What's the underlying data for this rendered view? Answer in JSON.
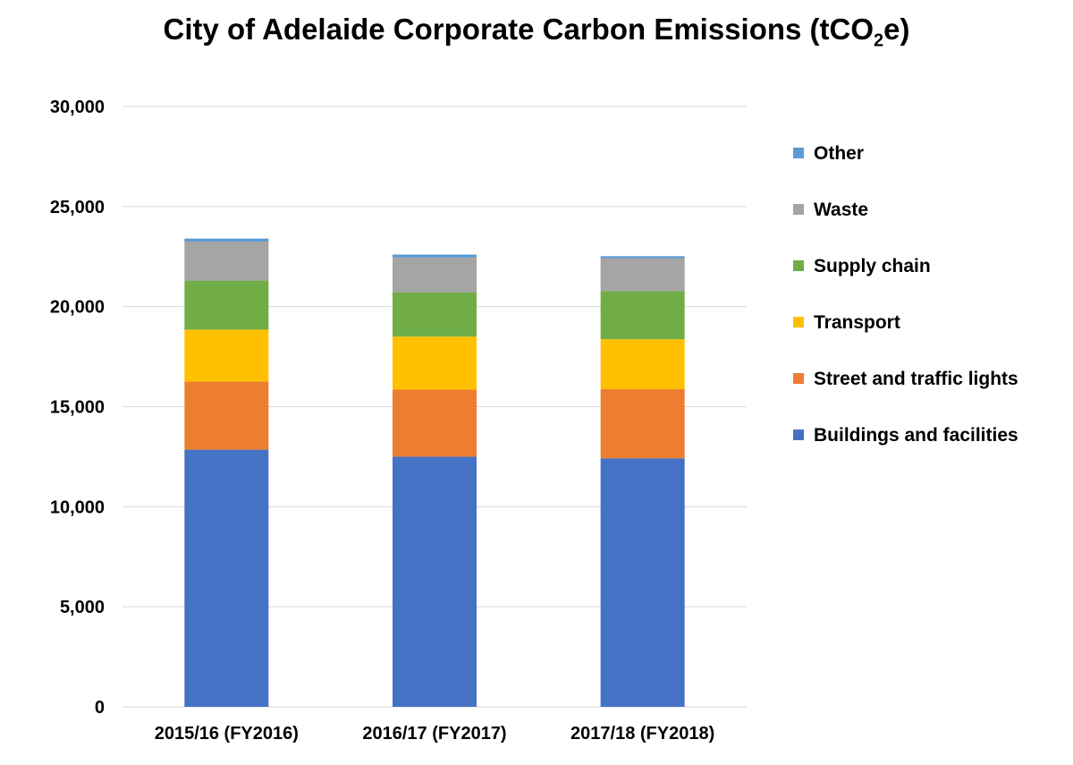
{
  "chart_data": {
    "type": "bar",
    "stacked": true,
    "title": "City of Adelaide Corporate Carbon Emissions (tCO2e)",
    "title_parts": {
      "prefix": "City of Adelaide Corporate Carbon Emissions (tCO",
      "subscript": "2",
      "suffix": "e)"
    },
    "xlabel": "",
    "ylabel": "",
    "ylim": [
      0,
      30000
    ],
    "y_ticks": [
      0,
      5000,
      10000,
      15000,
      20000,
      25000,
      30000
    ],
    "y_tick_labels": [
      "0",
      "5,000",
      "10,000",
      "15,000",
      "20,000",
      "25,000",
      "30,000"
    ],
    "grid": true,
    "legend_position": "right",
    "categories": [
      "2015/16 (FY2016)",
      "2016/17 (FY2017)",
      "2017/18 (FY2018)"
    ],
    "series": [
      {
        "name": "Buildings and facilities",
        "color": "#4472C4",
        "values": [
          12850,
          12500,
          12420
        ]
      },
      {
        "name": "Street and traffic lights",
        "color": "#ED7D31",
        "values": [
          3400,
          3350,
          3450
        ]
      },
      {
        "name": "Transport",
        "color": "#FFC000",
        "values": [
          2600,
          2650,
          2500
        ]
      },
      {
        "name": "Supply chain",
        "color": "#70AD47",
        "values": [
          2450,
          2200,
          2400
        ]
      },
      {
        "name": "Waste",
        "color": "#A5A5A5",
        "values": [
          1950,
          1750,
          1650
        ]
      },
      {
        "name": "Other",
        "color": "#5B9BD5",
        "values": [
          150,
          150,
          100
        ]
      }
    ]
  }
}
